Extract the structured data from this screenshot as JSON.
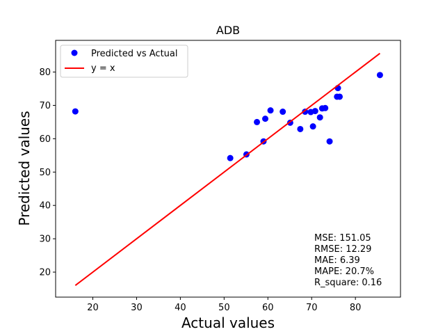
{
  "chart_data": {
    "type": "scatter",
    "title": "ADB",
    "xlabel": "Actual values",
    "ylabel": "Predicted values",
    "xlim": [
      11.5,
      90.3
    ],
    "ylim": [
      12.5,
      89.5
    ],
    "xticks": [
      20,
      30,
      40,
      50,
      60,
      70,
      80
    ],
    "yticks": [
      20,
      30,
      40,
      50,
      60,
      70,
      80
    ],
    "grid": false,
    "legend_position": "top-left",
    "series": [
      {
        "name": "Predicted vs Actual",
        "kind": "scatter",
        "color": "#0000ff",
        "points": [
          [
            16.0,
            68.2
          ],
          [
            51.4,
            54.2
          ],
          [
            55.1,
            55.3
          ],
          [
            57.5,
            65.0
          ],
          [
            59.0,
            59.2
          ],
          [
            59.4,
            66.0
          ],
          [
            60.6,
            68.5
          ],
          [
            63.4,
            68.1
          ],
          [
            65.1,
            64.8
          ],
          [
            67.4,
            62.9
          ],
          [
            68.5,
            68.1
          ],
          [
            69.8,
            68.0
          ],
          [
            70.3,
            63.7
          ],
          [
            70.8,
            68.3
          ],
          [
            71.9,
            66.4
          ],
          [
            72.4,
            69.1
          ],
          [
            73.1,
            69.2
          ],
          [
            74.1,
            59.2
          ],
          [
            75.8,
            72.6
          ],
          [
            76.0,
            75.2
          ],
          [
            76.4,
            72.6
          ],
          [
            85.6,
            79.1
          ]
        ]
      },
      {
        "name": "y = x",
        "kind": "line",
        "color": "#ff0000",
        "points": [
          [
            16.0,
            16.0
          ],
          [
            85.6,
            85.6
          ]
        ]
      }
    ],
    "annotations": [
      "MSE: 151.05",
      "RMSE: 12.29",
      "MAE: 6.39",
      "MAPE: 20.7%",
      "R_square: 0.16"
    ]
  }
}
